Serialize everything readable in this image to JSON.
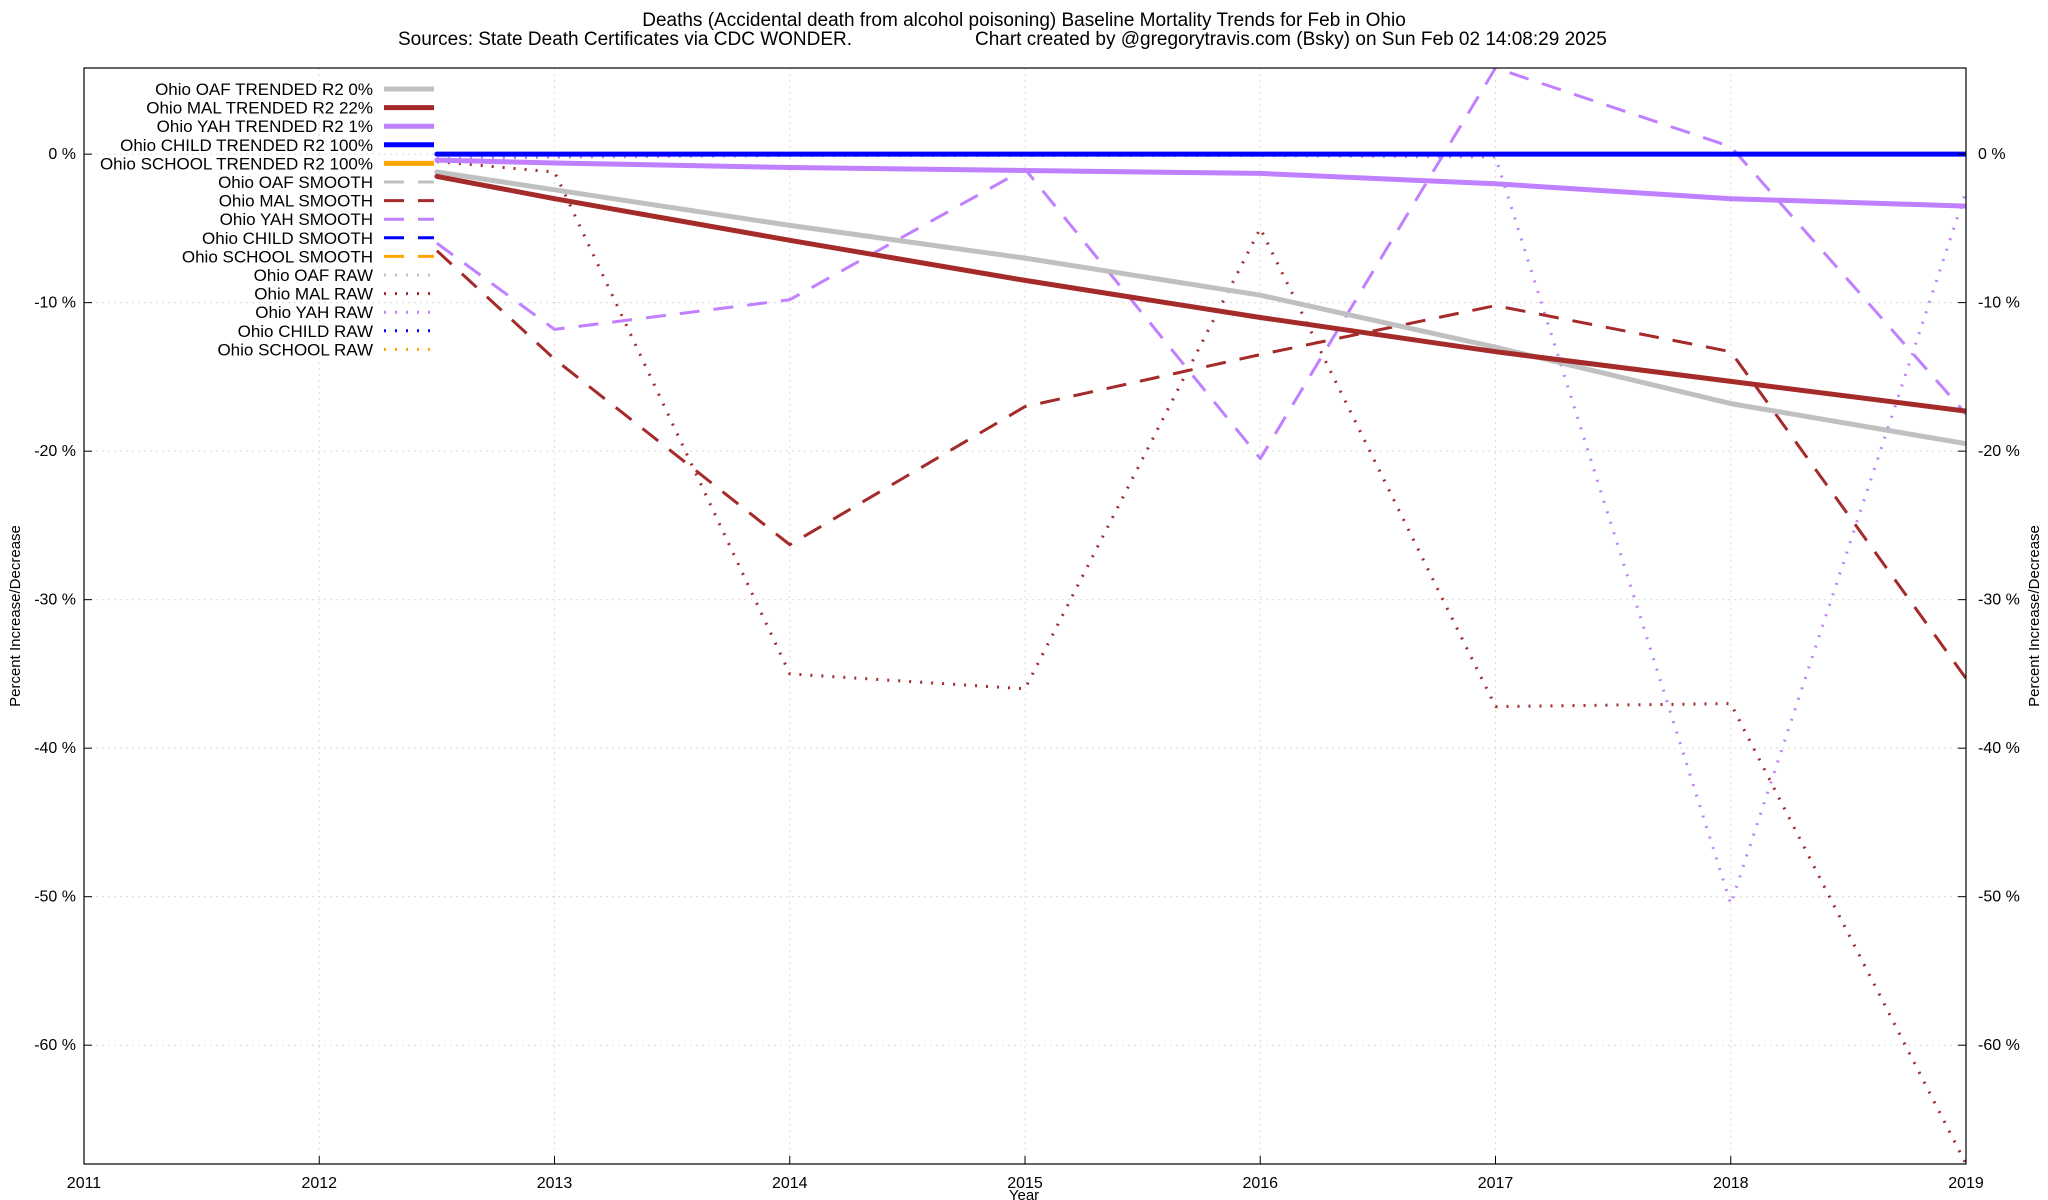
{
  "chart_data": {
    "type": "line",
    "title": "Deaths (Accidental death from alcohol poisoning)  Baseline Mortality Trends for Feb in Ohio",
    "subtitle_left": "Sources: State Death Certificates via CDC WONDER.",
    "subtitle_right": "Chart created by @gregorytravis.com (Bsky) on Sun Feb 02 14:08:29 2025",
    "xlabel": "Year",
    "ylabel_left": "Percent Increase/Decrease",
    "ylabel_right": "Percent Increase/Decrease",
    "xlim": [
      2011,
      2019
    ],
    "ylim": [
      -68,
      5.8
    ],
    "x_ticks": [
      "2011",
      "2012",
      "2013",
      "2014",
      "2015",
      "2016",
      "2017",
      "2018",
      "2019"
    ],
    "y_ticks": [
      {
        "value": 0,
        "label": "0 %"
      },
      {
        "value": -10,
        "label": "-10 %"
      },
      {
        "value": -20,
        "label": "-20 %"
      },
      {
        "value": -30,
        "label": "-30 %"
      },
      {
        "value": -40,
        "label": "-40 %"
      },
      {
        "value": -50,
        "label": "-50 %"
      },
      {
        "value": -60,
        "label": "-60 %"
      }
    ],
    "grid": true,
    "legend_position": "top-left",
    "series": [
      {
        "name": "Ohio OAF TRENDED R2   0%",
        "style": "trended",
        "color": "#c0c0c0",
        "x": [
          2012.5,
          2013,
          2014,
          2015,
          2016,
          2017,
          2018,
          2019
        ],
        "y": [
          -1.2,
          -2.4,
          -4.8,
          -7.0,
          -9.5,
          -13.0,
          -16.8,
          -19.5
        ]
      },
      {
        "name": "Ohio MAL TRENDED R2  22%",
        "style": "trended",
        "color": "#a52a2a",
        "x": [
          2012.5,
          2013,
          2014,
          2015,
          2016,
          2017,
          2018,
          2019
        ],
        "y": [
          -1.5,
          -3.0,
          -5.8,
          -8.5,
          -11.0,
          -13.3,
          -15.3,
          -17.3
        ]
      },
      {
        "name": "Ohio YAH TRENDED R2   1%",
        "style": "trended",
        "color": "#c080ff",
        "x": [
          2012.5,
          2013,
          2014,
          2015,
          2016,
          2017,
          2018,
          2019
        ],
        "y": [
          -0.4,
          -0.6,
          -0.9,
          -1.1,
          -1.3,
          -2.0,
          -3.0,
          -3.5
        ]
      },
      {
        "name": "Ohio CHILD TRENDED R2 100%",
        "style": "trended",
        "color": "#0000ff",
        "x": [
          2012.5,
          2019
        ],
        "y": [
          0,
          0
        ]
      },
      {
        "name": "Ohio SCHOOL TRENDED R2 100%",
        "style": "trended",
        "color": "#ffa500",
        "x": [],
        "y": []
      },
      {
        "name": "Ohio OAF SMOOTH",
        "style": "smooth",
        "color": "#c0c0c0",
        "x": [
          2012.5,
          2019
        ],
        "y": [
          0,
          0
        ]
      },
      {
        "name": "Ohio MAL SMOOTH",
        "style": "smooth",
        "color": "#a52a2a",
        "x": [
          2012.5,
          2013,
          2014,
          2015,
          2016,
          2017,
          2018,
          2019
        ],
        "y": [
          -6.5,
          -13.8,
          -26.3,
          -17.0,
          -13.5,
          -10.2,
          -13.3,
          -35.3
        ]
      },
      {
        "name": "Ohio YAH SMOOTH",
        "style": "smooth",
        "color": "#c080ff",
        "x": [
          2012.5,
          2013,
          2014,
          2015,
          2016,
          2017,
          2018,
          2019
        ],
        "y": [
          -6.0,
          -11.8,
          -9.8,
          -1.0,
          -20.5,
          5.8,
          0.5,
          -17.5
        ]
      },
      {
        "name": "Ohio CHILD SMOOTH",
        "style": "smooth",
        "color": "#0000ff",
        "x": [],
        "y": []
      },
      {
        "name": "Ohio SCHOOL SMOOTH",
        "style": "smooth",
        "color": "#ffa500",
        "x": [],
        "y": []
      },
      {
        "name": "Ohio OAF RAW",
        "style": "raw",
        "color": "#c0c0c0",
        "x": [
          2012.5,
          2019
        ],
        "y": [
          0,
          0
        ]
      },
      {
        "name": "Ohio MAL RAW",
        "style": "raw",
        "color": "#a52a2a",
        "x": [
          2012.5,
          2013,
          2014,
          2015,
          2016,
          2017,
          2018,
          2019
        ],
        "y": [
          -0.5,
          -1.2,
          -35.0,
          -36.0,
          -5.0,
          -37.2,
          -37.0,
          -68.0
        ]
      },
      {
        "name": "Ohio YAH RAW",
        "style": "raw",
        "color": "#c080ff",
        "x": [
          2012.5,
          2013,
          2014,
          2015,
          2016,
          2017,
          2018,
          2019
        ],
        "y": [
          -0.3,
          -0.2,
          -0.1,
          -0.1,
          -0.1,
          -0.2,
          -50.5,
          -2.5
        ]
      },
      {
        "name": "Ohio CHILD RAW",
        "style": "raw",
        "color": "#0000ff",
        "x": [],
        "y": []
      },
      {
        "name": "Ohio SCHOOL RAW",
        "style": "raw",
        "color": "#ffa500",
        "x": [],
        "y": []
      }
    ]
  }
}
